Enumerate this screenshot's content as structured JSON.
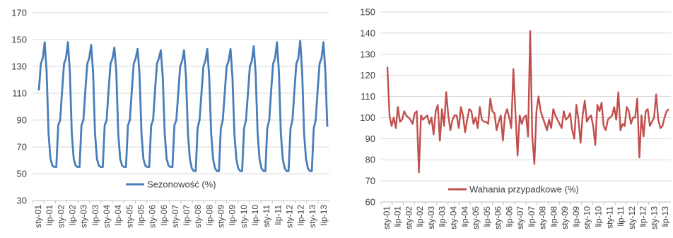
{
  "chart_data": [
    {
      "type": "line",
      "ylim": [
        30,
        170
      ],
      "yticks": [
        30,
        50,
        70,
        90,
        110,
        130,
        150,
        170
      ],
      "grid": "horizontal",
      "legend_position": "bottom-right",
      "color": "#4a7ebb",
      "xtick_labels": [
        "sty-01",
        "lip-01",
        "sty-02",
        "lip-02",
        "sty-03",
        "lip-03",
        "sty-04",
        "lip-04",
        "sty-05",
        "lip-05",
        "sty-06",
        "lip-06",
        "sty-07",
        "lip-07",
        "sty-08",
        "lip-08",
        "sty-09",
        "lip-09",
        "sty-10",
        "lip-10",
        "sty-11",
        "lip-11",
        "sty-12",
        "lip-12",
        "sty-13",
        "lip-13"
      ],
      "series": [
        {
          "name": "Sezonowość (%)",
          "values": [
            112,
            132,
            136,
            148,
            126,
            80,
            61,
            56,
            55,
            55,
            86,
            90,
            112,
            132,
            136,
            148,
            126,
            80,
            61,
            56,
            55,
            55,
            86,
            90,
            112,
            132,
            136,
            146,
            126,
            80,
            61,
            56,
            55,
            55,
            86,
            90,
            112,
            132,
            136,
            144,
            126,
            80,
            61,
            56,
            55,
            55,
            86,
            90,
            112,
            132,
            136,
            143,
            124,
            80,
            61,
            56,
            55,
            55,
            86,
            90,
            112,
            132,
            136,
            142,
            122,
            80,
            61,
            56,
            55,
            55,
            86,
            90,
            110,
            130,
            134,
            142,
            122,
            80,
            61,
            54,
            52,
            52,
            84,
            90,
            110,
            130,
            134,
            143,
            122,
            80,
            61,
            54,
            52,
            52,
            84,
            90,
            110,
            130,
            134,
            143,
            122,
            80,
            61,
            54,
            52,
            52,
            84,
            90,
            110,
            130,
            134,
            145,
            124,
            80,
            61,
            54,
            52,
            52,
            84,
            90,
            112,
            132,
            136,
            148,
            126,
            80,
            61,
            54,
            52,
            52,
            84,
            90,
            112,
            132,
            136,
            149,
            126,
            80,
            61,
            54,
            52,
            52,
            84,
            90,
            112,
            132,
            136,
            148,
            126,
            85
          ]
        }
      ]
    },
    {
      "type": "line",
      "ylim": [
        60,
        150
      ],
      "yticks": [
        60,
        70,
        80,
        90,
        100,
        110,
        120,
        130,
        140,
        150
      ],
      "grid": "horizontal",
      "legend_position": "bottom-right",
      "color": "#c0504d",
      "xtick_labels": [
        "sty-01",
        "lip-01",
        "sty-02",
        "lip-02",
        "sty-03",
        "lip-03",
        "sty-04",
        "lip-04",
        "sty-05",
        "lip-05",
        "sty-06",
        "lip-06",
        "sty-07",
        "lip-07",
        "sty-08",
        "lip-08",
        "sty-09",
        "lip-09",
        "sty-10",
        "lip-10",
        "sty-11",
        "lip-11",
        "sty-12",
        "lip-12",
        "sty-13",
        "lip-13"
      ],
      "series": [
        {
          "name": "Wahania przypadkowe (%)",
          "values": [
            124,
            101,
            96,
            100,
            95,
            105,
            98,
            99,
            103,
            101,
            100,
            99,
            97,
            102,
            103,
            74,
            101,
            99,
            100,
            101,
            97,
            100,
            92,
            103,
            106,
            89,
            104,
            96,
            112,
            101,
            94,
            99,
            101,
            101,
            95,
            105,
            101,
            93,
            99,
            104,
            103,
            97,
            100,
            95,
            105,
            99,
            98,
            98,
            97,
            109,
            103,
            102,
            94,
            98,
            101,
            89,
            101,
            104,
            100,
            95,
            123,
            102,
            82,
            101,
            97,
            100,
            101,
            91,
            141,
            91,
            78,
            103,
            110,
            103,
            100,
            97,
            94,
            99,
            95,
            104,
            101,
            99,
            97,
            95,
            103,
            99,
            100,
            102,
            94,
            90,
            106,
            99,
            88,
            101,
            108,
            98,
            100,
            101,
            96,
            87,
            106,
            103,
            107,
            96,
            94,
            99,
            100,
            101,
            105,
            99,
            112,
            94,
            97,
            96,
            105,
            103,
            97,
            100,
            100,
            109,
            81,
            101,
            91,
            103,
            104,
            96,
            98,
            100,
            111,
            99,
            95,
            96,
            100,
            103,
            104
          ]
        }
      ]
    }
  ]
}
